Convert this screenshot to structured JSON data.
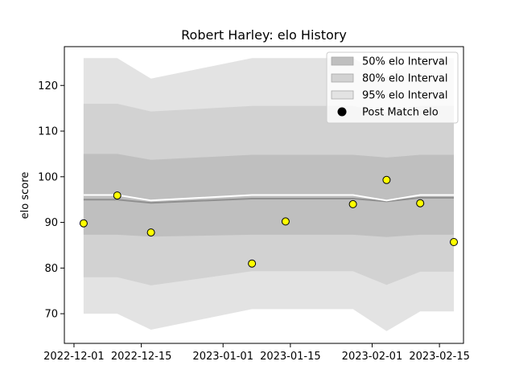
{
  "chart_data": {
    "type": "area",
    "title": "Robert Harley: elo History",
    "xlabel": "",
    "ylabel": "elo score",
    "x_ticks": [
      "2022-12-01",
      "2022-12-15",
      "2023-01-01",
      "2023-01-15",
      "2023-02-01",
      "2023-02-15"
    ],
    "y_ticks": [
      70,
      80,
      90,
      100,
      110,
      120
    ],
    "xlim": [
      "2022-11-29",
      "2023-02-20"
    ],
    "ylim": [
      63.5,
      128.5
    ],
    "dates": [
      "2022-12-03",
      "2022-12-10",
      "2022-12-17",
      "2023-01-07",
      "2023-01-14",
      "2023-01-28",
      "2023-02-04",
      "2023-02-11",
      "2023-02-18"
    ],
    "median": [
      95.0,
      95.0,
      94.3,
      95.2,
      95.2,
      95.2,
      94.6,
      95.4,
      95.4
    ],
    "mean": [
      96.0,
      96.0,
      94.8,
      96.0,
      96.0,
      96.0,
      94.8,
      96.0,
      96.0
    ],
    "band_95": {
      "lower": [
        70.0,
        70.0,
        66.5,
        71.0,
        71.0,
        71.0,
        66.2,
        70.5,
        70.5
      ],
      "upper": [
        126.0,
        126.0,
        121.5,
        126.0,
        126.0,
        126.0,
        122.0,
        126.0,
        126.0
      ]
    },
    "band_80": {
      "lower": [
        78.0,
        78.0,
        76.2,
        79.3,
        79.3,
        79.3,
        76.3,
        79.2,
        79.2
      ],
      "upper": [
        116.0,
        116.0,
        114.3,
        115.5,
        115.5,
        115.5,
        114.0,
        115.5,
        115.5
      ]
    },
    "band_50": {
      "lower": [
        87.3,
        87.3,
        86.9,
        87.3,
        87.3,
        87.3,
        86.8,
        87.3,
        87.3
      ],
      "upper": [
        105.0,
        105.0,
        103.7,
        104.8,
        104.8,
        104.8,
        104.2,
        104.8,
        104.8
      ]
    },
    "post_match": [
      89.8,
      95.9,
      87.8,
      81.0,
      90.2,
      94.0,
      99.3,
      94.2,
      85.7
    ],
    "legend": {
      "placement": "top-right",
      "entries": [
        "50% elo Interval",
        "80% elo Interval",
        "95% elo Interval",
        "Post Match elo"
      ]
    },
    "colors": {
      "band_95": "#e3e3e3",
      "band_80": "#d2d2d2",
      "band_50": "#bfbfbf",
      "median": "#8f8f8f",
      "mean": "#ffffff",
      "marker_fill": "#ffff00",
      "marker_edge": "#000000"
    }
  }
}
